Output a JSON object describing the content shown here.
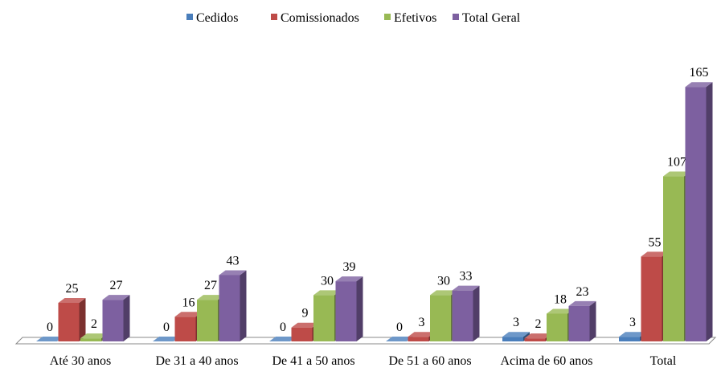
{
  "chart_data": {
    "type": "bar3d",
    "categories": [
      "Até 30 anos",
      "De 31 a 40 anos",
      "De 41 a 50 anos",
      "De 51 a 60 anos",
      "Acima de 60 anos",
      "Total"
    ],
    "series": [
      {
        "name": "Cedidos",
        "color": "#4a7ebb",
        "values": [
          0,
          0,
          0,
          0,
          3,
          3
        ]
      },
      {
        "name": "Comissionados",
        "color": "#be4b48",
        "values": [
          25,
          16,
          9,
          3,
          2,
          55
        ]
      },
      {
        "name": "Efetivos",
        "color": "#98b954",
        "values": [
          2,
          27,
          30,
          30,
          18,
          107
        ]
      },
      {
        "name": "Total Geral",
        "color": "#7d60a0",
        "values": [
          27,
          43,
          39,
          33,
          23,
          165
        ]
      }
    ],
    "legend": "top"
  }
}
